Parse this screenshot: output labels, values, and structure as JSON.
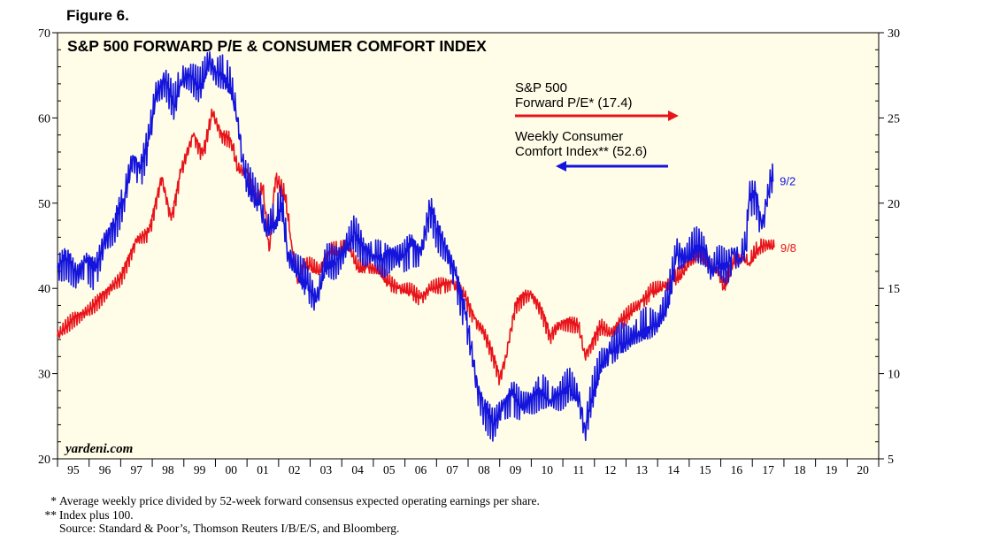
{
  "figure_label": "Figure 6.",
  "chart_data": {
    "type": "line",
    "title": "S&P 500 FORWARD P/E & CONSUMER COMFORT INDEX",
    "watermark": "yardeni.com",
    "x_range": [
      1995.0,
      2021.0
    ],
    "x_tick_labels": [
      "95",
      "96",
      "97",
      "98",
      "99",
      "00",
      "01",
      "02",
      "03",
      "04",
      "05",
      "06",
      "07",
      "08",
      "09",
      "10",
      "11",
      "12",
      "13",
      "14",
      "15",
      "16",
      "17",
      "18",
      "19",
      "20"
    ],
    "left_axis": {
      "range": [
        20,
        70
      ],
      "ticks": [
        "20",
        "30",
        "40",
        "50",
        "60",
        "70"
      ],
      "series": "Weekly Consumer Comfort Index"
    },
    "right_axis": {
      "range": [
        5,
        30
      ],
      "ticks": [
        "5",
        "10",
        "15",
        "20",
        "25",
        "30"
      ],
      "series": "S&P 500 Forward P/E"
    },
    "grid": false,
    "background": "#fffde7",
    "series": [
      {
        "name": "S&P 500 Forward P/E",
        "axis": "right",
        "color": "#e8141b",
        "end_label": "9/8",
        "points": [
          [
            1995.0,
            12.2
          ],
          [
            1995.5,
            13.2
          ],
          [
            1996.0,
            13.7
          ],
          [
            1996.5,
            14.7
          ],
          [
            1997.0,
            15.6
          ],
          [
            1997.5,
            17.8
          ],
          [
            1997.9,
            18.3
          ],
          [
            1998.3,
            21.5
          ],
          [
            1998.6,
            19.0
          ],
          [
            1998.9,
            21.8
          ],
          [
            1999.3,
            24.0
          ],
          [
            1999.6,
            22.8
          ],
          [
            1999.9,
            25.3
          ],
          [
            2000.2,
            24.0
          ],
          [
            2000.5,
            23.7
          ],
          [
            2000.7,
            22.0
          ],
          [
            2001.0,
            21.8
          ],
          [
            2001.3,
            20.0
          ],
          [
            2001.5,
            21.0
          ],
          [
            2001.7,
            17.2
          ],
          [
            2001.9,
            21.5
          ],
          [
            2002.2,
            20.5
          ],
          [
            2002.4,
            17.8
          ],
          [
            2002.6,
            15.3
          ],
          [
            2002.8,
            16.3
          ],
          [
            2003.0,
            16.3
          ],
          [
            2003.3,
            16.0
          ],
          [
            2003.6,
            17.2
          ],
          [
            2003.9,
            17.2
          ],
          [
            2004.2,
            17.6
          ],
          [
            2004.5,
            16.2
          ],
          [
            2004.8,
            16.3
          ],
          [
            2005.2,
            16.0
          ],
          [
            2005.5,
            15.3
          ],
          [
            2005.8,
            15.0
          ],
          [
            2006.2,
            14.8
          ],
          [
            2006.5,
            14.4
          ],
          [
            2006.8,
            15.0
          ],
          [
            2007.2,
            15.2
          ],
          [
            2007.5,
            15.3
          ],
          [
            2007.9,
            14.5
          ],
          [
            2008.2,
            13.2
          ],
          [
            2008.5,
            12.4
          ],
          [
            2008.8,
            11.0
          ],
          [
            2009.0,
            9.7
          ],
          [
            2009.2,
            11.0
          ],
          [
            2009.5,
            14.0
          ],
          [
            2009.8,
            14.6
          ],
          [
            2010.0,
            14.6
          ],
          [
            2010.3,
            13.8
          ],
          [
            2010.6,
            12.2
          ],
          [
            2010.9,
            12.9
          ],
          [
            2011.2,
            13.0
          ],
          [
            2011.5,
            12.8
          ],
          [
            2011.7,
            11.0
          ],
          [
            2011.9,
            11.7
          ],
          [
            2012.2,
            12.8
          ],
          [
            2012.5,
            12.3
          ],
          [
            2012.8,
            13.0
          ],
          [
            2013.2,
            13.7
          ],
          [
            2013.5,
            14.2
          ],
          [
            2013.8,
            14.8
          ],
          [
            2014.2,
            15.1
          ],
          [
            2014.5,
            15.5
          ],
          [
            2014.8,
            15.9
          ],
          [
            2015.0,
            16.5
          ],
          [
            2015.3,
            17.0
          ],
          [
            2015.6,
            16.5
          ],
          [
            2015.9,
            16.0
          ],
          [
            2016.1,
            15.0
          ],
          [
            2016.4,
            16.5
          ],
          [
            2016.7,
            16.8
          ],
          [
            2016.9,
            16.5
          ],
          [
            2017.2,
            17.4
          ],
          [
            2017.5,
            17.6
          ],
          [
            2017.69,
            17.4
          ]
        ]
      },
      {
        "name": "Weekly Consumer Comfort Index",
        "axis": "left",
        "color": "#1414dc",
        "end_label": "9/2",
        "points": [
          [
            1995.0,
            42.5
          ],
          [
            1995.3,
            43.5
          ],
          [
            1995.6,
            41.5
          ],
          [
            1995.9,
            43.0
          ],
          [
            1996.2,
            42.0
          ],
          [
            1996.5,
            45.5
          ],
          [
            1996.8,
            47.5
          ],
          [
            1997.1,
            50.5
          ],
          [
            1997.4,
            55.5
          ],
          [
            1997.6,
            53.5
          ],
          [
            1997.9,
            57.5
          ],
          [
            1998.1,
            62.5
          ],
          [
            1998.4,
            64.5
          ],
          [
            1998.7,
            61.5
          ],
          [
            1998.9,
            64.5
          ],
          [
            1999.2,
            65.0
          ],
          [
            1999.5,
            63.5
          ],
          [
            1999.8,
            66.5
          ],
          [
            2000.0,
            65.5
          ],
          [
            2000.3,
            65.0
          ],
          [
            2000.5,
            63.5
          ],
          [
            2000.7,
            60.0
          ],
          [
            2000.9,
            53.5
          ],
          [
            2001.2,
            51.0
          ],
          [
            2001.4,
            50.0
          ],
          [
            2001.6,
            47.0
          ],
          [
            2001.9,
            48.0
          ],
          [
            2002.1,
            50.0
          ],
          [
            2002.3,
            44.0
          ],
          [
            2002.6,
            42.0
          ],
          [
            2002.9,
            40.5
          ],
          [
            2003.2,
            38.5
          ],
          [
            2003.5,
            43.0
          ],
          [
            2003.8,
            43.0
          ],
          [
            2004.1,
            44.5
          ],
          [
            2004.4,
            46.5
          ],
          [
            2004.7,
            44.5
          ],
          [
            2005.0,
            44.0
          ],
          [
            2005.3,
            43.5
          ],
          [
            2005.6,
            44.0
          ],
          [
            2005.9,
            43.5
          ],
          [
            2006.2,
            45.0
          ],
          [
            2006.5,
            44.0
          ],
          [
            2006.8,
            49.5
          ],
          [
            2007.0,
            47.0
          ],
          [
            2007.3,
            44.5
          ],
          [
            2007.6,
            41.5
          ],
          [
            2007.9,
            37.0
          ],
          [
            2008.1,
            33.0
          ],
          [
            2008.3,
            28.0
          ],
          [
            2008.5,
            26.0
          ],
          [
            2008.8,
            24.0
          ],
          [
            2009.1,
            26.0
          ],
          [
            2009.4,
            27.5
          ],
          [
            2009.7,
            26.0
          ],
          [
            2010.0,
            27.0
          ],
          [
            2010.3,
            28.0
          ],
          [
            2010.6,
            27.0
          ],
          [
            2010.9,
            27.5
          ],
          [
            2011.2,
            28.5
          ],
          [
            2011.5,
            27.0
          ],
          [
            2011.7,
            23.5
          ],
          [
            2011.9,
            27.0
          ],
          [
            2012.2,
            31.0
          ],
          [
            2012.5,
            32.5
          ],
          [
            2012.8,
            33.5
          ],
          [
            2013.1,
            34.0
          ],
          [
            2013.4,
            35.0
          ],
          [
            2013.7,
            35.5
          ],
          [
            2014.0,
            36.0
          ],
          [
            2014.3,
            38.0
          ],
          [
            2014.6,
            44.0
          ],
          [
            2014.9,
            43.5
          ],
          [
            2015.2,
            45.0
          ],
          [
            2015.5,
            44.5
          ],
          [
            2015.7,
            42.0
          ],
          [
            2015.9,
            43.0
          ],
          [
            2016.2,
            42.5
          ],
          [
            2016.4,
            44.0
          ],
          [
            2016.6,
            43.5
          ],
          [
            2016.8,
            45.0
          ],
          [
            2016.9,
            50.5
          ],
          [
            2017.1,
            51.0
          ],
          [
            2017.3,
            47.0
          ],
          [
            2017.45,
            50.0
          ],
          [
            2017.6,
            53.0
          ],
          [
            2017.67,
            52.6
          ]
        ]
      }
    ],
    "legend": [
      {
        "label_lines": [
          "S&P 500",
          "Forward P/E* (17.4)"
        ],
        "arrow": "right",
        "color": "#e8141b"
      },
      {
        "label_lines": [
          "Weekly Consumer",
          "Comfort Index** (52.6)"
        ],
        "arrow": "left",
        "color": "#1414dc"
      }
    ]
  },
  "footnotes": [
    {
      "mark": "*",
      "text": "Average weekly price divided by 52-week forward consensus expected operating earnings per share."
    },
    {
      "mark": "**",
      "text": "Index plus 100."
    },
    {
      "mark": "",
      "text": "Source: Standard & Poor’s, Thomson Reuters I/B/E/S, and Bloomberg."
    }
  ]
}
